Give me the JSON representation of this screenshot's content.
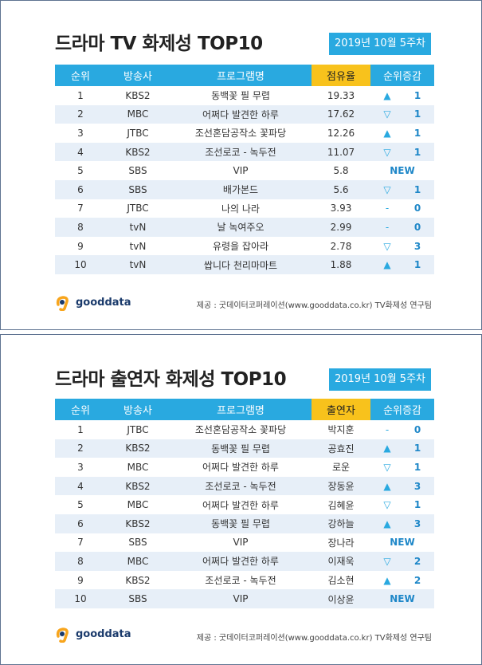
{
  "panel1": {
    "title": "드라마 TV 화제성 TOP10",
    "date": "2019년 10월 5주차",
    "headers": [
      "순위",
      "방송사",
      "프로그램명",
      "점유율",
      "순위증감"
    ],
    "rows": [
      {
        "rank": "1",
        "station": "KBS2",
        "program": "동백꽃 필 무렵",
        "value": "19.33",
        "dir": "▲",
        "delta": "1"
      },
      {
        "rank": "2",
        "station": "MBC",
        "program": "어쩌다 발견한 하루",
        "value": "17.62",
        "dir": "▽",
        "delta": "1"
      },
      {
        "rank": "3",
        "station": "JTBC",
        "program": "조선혼담공작소 꽃파당",
        "value": "12.26",
        "dir": "▲",
        "delta": "1"
      },
      {
        "rank": "4",
        "station": "KBS2",
        "program": "조선로코 - 녹두전",
        "value": "11.07",
        "dir": "▽",
        "delta": "1"
      },
      {
        "rank": "5",
        "station": "SBS",
        "program": "VIP",
        "value": "5.8",
        "dir": "",
        "delta": "NEW"
      },
      {
        "rank": "6",
        "station": "SBS",
        "program": "배가본드",
        "value": "5.6",
        "dir": "▽",
        "delta": "1"
      },
      {
        "rank": "7",
        "station": "JTBC",
        "program": "나의 나라",
        "value": "3.93",
        "dir": "-",
        "delta": "0"
      },
      {
        "rank": "8",
        "station": "tvN",
        "program": "날 녹여주오",
        "value": "2.99",
        "dir": "-",
        "delta": "0"
      },
      {
        "rank": "9",
        "station": "tvN",
        "program": "유령을 잡아라",
        "value": "2.78",
        "dir": "▽",
        "delta": "3"
      },
      {
        "rank": "10",
        "station": "tvN",
        "program": "쌉니다 천리마마트",
        "value": "1.88",
        "dir": "▲",
        "delta": "1"
      }
    ],
    "logo": "gooddata",
    "source": "제공 : 굿데이터코퍼레이션(www.gooddata.co.kr) TV화제성 연구팀"
  },
  "panel2": {
    "title": "드라마 출연자 화제성 TOP10",
    "date": "2019년 10월 5주차",
    "headers": [
      "순위",
      "방송사",
      "프로그램명",
      "출연자",
      "순위증감"
    ],
    "rows": [
      {
        "rank": "1",
        "station": "JTBC",
        "program": "조선혼담공작소 꽃파당",
        "value": "박지훈",
        "dir": "-",
        "delta": "0"
      },
      {
        "rank": "2",
        "station": "KBS2",
        "program": "동백꽃 필 무렵",
        "value": "공효진",
        "dir": "▲",
        "delta": "1"
      },
      {
        "rank": "3",
        "station": "MBC",
        "program": "어쩌다 발견한 하루",
        "value": "로운",
        "dir": "▽",
        "delta": "1"
      },
      {
        "rank": "4",
        "station": "KBS2",
        "program": "조선로코 - 녹두전",
        "value": "장동윤",
        "dir": "▲",
        "delta": "3"
      },
      {
        "rank": "5",
        "station": "MBC",
        "program": "어쩌다 발견한 하루",
        "value": "김혜윤",
        "dir": "▽",
        "delta": "1"
      },
      {
        "rank": "6",
        "station": "KBS2",
        "program": "동백꽃 필 무렵",
        "value": "강하늘",
        "dir": "▲",
        "delta": "3"
      },
      {
        "rank": "7",
        "station": "SBS",
        "program": "VIP",
        "value": "장나라",
        "dir": "",
        "delta": "NEW"
      },
      {
        "rank": "8",
        "station": "MBC",
        "program": "어쩌다 발견한 하루",
        "value": "이재욱",
        "dir": "▽",
        "delta": "2"
      },
      {
        "rank": "9",
        "station": "KBS2",
        "program": "조선로코 - 녹두전",
        "value": "김소현",
        "dir": "▲",
        "delta": "2"
      },
      {
        "rank": "10",
        "station": "SBS",
        "program": "VIP",
        "value": "이상윤",
        "dir": "",
        "delta": "NEW"
      }
    ],
    "logo": "gooddata",
    "source": "제공 : 굿데이터코퍼레이션(www.gooddata.co.kr) TV화제성 연구팀"
  },
  "colors": {
    "header_blue": "#29a9e0",
    "header_yellow": "#f8c21c",
    "row_alt": "#e7eff8"
  }
}
